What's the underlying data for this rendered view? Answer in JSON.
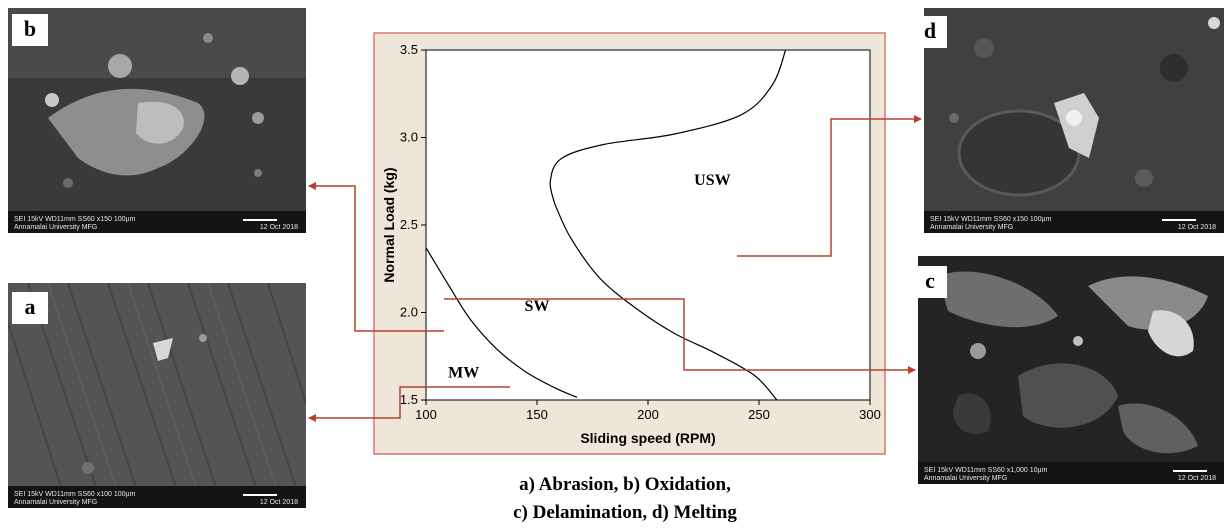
{
  "images": {
    "b": {
      "label": "b",
      "meta": "SEI   15kV    WD11mm    SS60              x150      100µm",
      "institution": "Annamalai University MFG",
      "date": "12 Oct 2018"
    },
    "a": {
      "label": "a",
      "meta": "SEI   15kV    WD11mm    SS60              x100      100µm",
      "institution": "Annamalai University MFG",
      "date": "12 Oct 2018"
    },
    "d": {
      "label": "d",
      "meta": "SEI   15kV    WD11mm    SS60              x150      100µm",
      "institution": "Annamalai University MFG",
      "date": "12 Oct 2018"
    },
    "c": {
      "label": "c",
      "meta": "SEI   15kV    WD11mm    SS60              x1,000    10µm",
      "institution": "Annamalai University MFG",
      "date": "12 Oct 2018"
    }
  },
  "caption": {
    "line1": "a)   Abrasion, b) Oxidation,",
    "line2": "c) Delamination, d) Melting"
  },
  "colors": {
    "chart_frame_bg": "#efe6da",
    "chart_frame_border": "#d27a6e",
    "arrow": "#b8402f",
    "curve": "#000000"
  },
  "chart_data": {
    "type": "line",
    "title": "",
    "xlabel": "Sliding speed (RPM)",
    "ylabel": "Normal Load (kg)",
    "xlim": [
      100,
      300
    ],
    "ylim": [
      1.5,
      3.5
    ],
    "xticks": [
      100,
      150,
      200,
      250,
      300
    ],
    "yticks": [
      1.5,
      2.0,
      2.5,
      3.0,
      3.5
    ],
    "grid": false,
    "series": [
      {
        "points": [
          [
            100,
            2.37
          ],
          [
            110,
            2.16
          ],
          [
            120,
            1.96
          ],
          [
            132,
            1.79
          ],
          [
            145,
            1.66
          ],
          [
            158,
            1.57
          ],
          [
            168,
            1.515
          ]
        ]
      },
      {
        "points": [
          [
            158,
            2.62
          ],
          [
            165,
            2.43
          ],
          [
            178,
            2.2
          ],
          [
            195,
            2.02
          ],
          [
            212,
            1.88
          ],
          [
            230,
            1.77
          ],
          [
            248,
            1.64
          ],
          [
            258,
            1.5
          ]
        ]
      },
      {
        "points": [
          [
            158,
            2.62
          ],
          [
            156,
            2.75
          ],
          [
            161,
            2.88
          ],
          [
            180,
            2.96
          ],
          [
            212,
            3.02
          ],
          [
            242,
            3.13
          ],
          [
            256,
            3.3
          ],
          [
            262,
            3.5
          ]
        ]
      }
    ],
    "regions": [
      {
        "label": "MW",
        "x": 117,
        "y": 1.63
      },
      {
        "label": "SW",
        "x": 150,
        "y": 2.01
      },
      {
        "label": "USW",
        "x": 229,
        "y": 2.73
      }
    ]
  }
}
